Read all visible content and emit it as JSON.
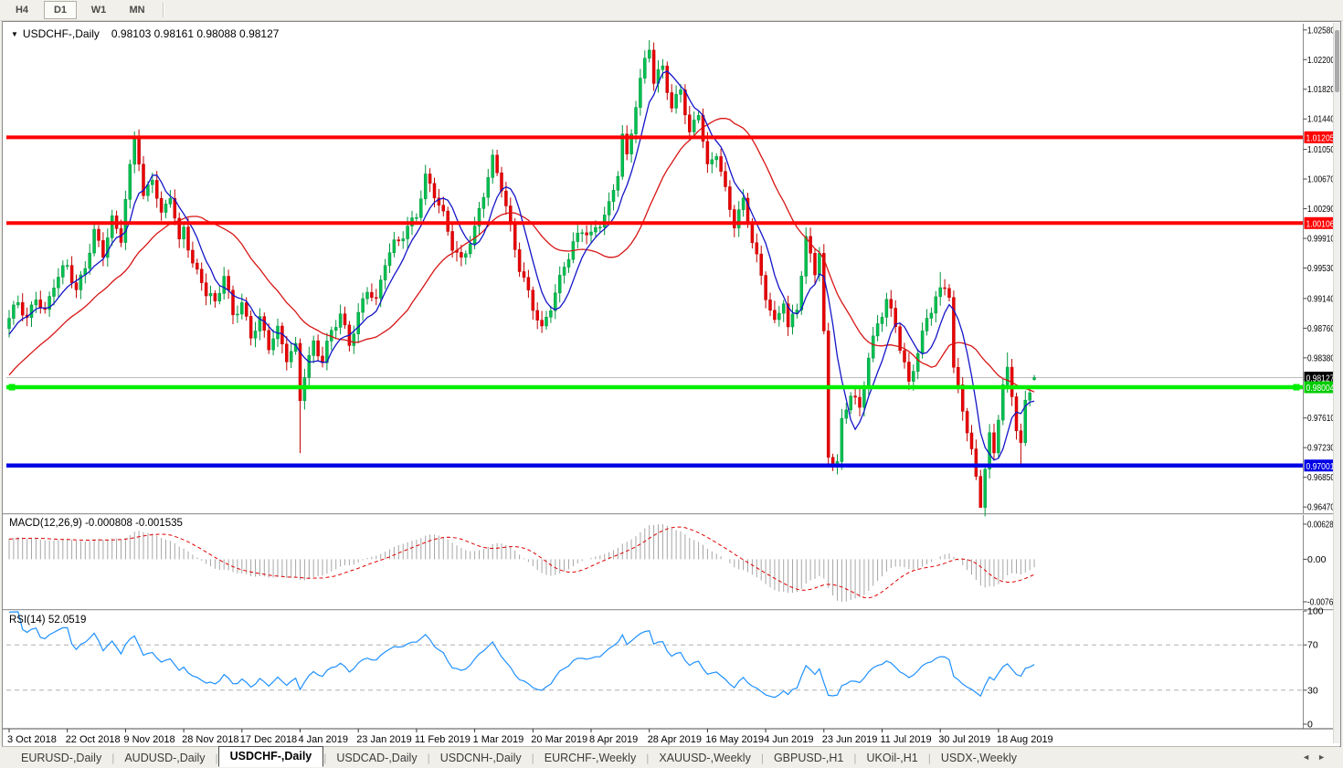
{
  "toolbar": {
    "timeframes": [
      {
        "label": "H4",
        "active": false
      },
      {
        "label": "D1",
        "active": true
      },
      {
        "label": "W1",
        "active": false
      },
      {
        "label": "MN",
        "active": false
      }
    ]
  },
  "icons": {
    "dropdown": "▼",
    "tab_scroll_left": "◄",
    "tab_scroll_right": "►"
  },
  "chart": {
    "title": {
      "symbol": "USDCHF-,Daily",
      "ohlc_text": "0.98103 0.98161 0.98088 0.98127"
    },
    "price_axis": {
      "labels": [
        "1.02580",
        "1.02200",
        "1.01820",
        "1.01440",
        "1.01050",
        "1.00670",
        "1.00290",
        "0.99910",
        "0.99530",
        "0.99140",
        "0.98760",
        "0.98380",
        "0.97610",
        "0.97230",
        "0.96850",
        "0.96470"
      ]
    },
    "last_price": {
      "value": 0.98127,
      "label": "0.98127",
      "badge_color": "#000000",
      "line_color": "#bdbdbd"
    },
    "hlines": [
      {
        "price": 1.01205,
        "label": "1.01205",
        "color": "#ff0000",
        "width": 4,
        "selected": false
      },
      {
        "price": 1.00106,
        "label": "1.00106",
        "color": "#ff0000",
        "width": 4,
        "selected": false
      },
      {
        "price": 0.98004,
        "label": "0.98004",
        "color": "#00ee00",
        "width": 4.5,
        "selected": true
      },
      {
        "price": 0.97001,
        "label": "0.97001",
        "color": "#0000e6",
        "width": 4.5,
        "selected": false
      }
    ],
    "date_axis": {
      "labels": [
        "3 Oct 2018",
        "22 Oct 2018",
        "9 Nov 2018",
        "28 Nov 2018",
        "17 Dec 2018",
        "4 Jan 2019",
        "23 Jan 2019",
        "11 Feb 2019",
        "1 Mar 2019",
        "20 Mar 2019",
        "8 Apr 2019",
        "28 Apr 2019",
        "16 May 2019",
        "4 Jun 2019",
        "23 Jun 2019",
        "11 Jul 2019",
        "30 Jul 2019",
        "18 Aug 2019"
      ],
      "step_candles": 13
    }
  },
  "indicators": {
    "macd": {
      "name": "MACD(12,26,9)",
      "value_main": "-0.000808",
      "value_signal": "-0.001535",
      "axis_labels": [
        "0.006286",
        "0.00",
        "-0.00762"
      ],
      "range": {
        "max": 0.006286,
        "min": -0.00762
      },
      "histogram_color": "#a6a6a6",
      "signal_color": "#e00000"
    },
    "rsi": {
      "name": "RSI(14)",
      "value": "52.0519",
      "axis_labels": [
        "100",
        "70",
        "30",
        "0"
      ],
      "levels": [
        70,
        30
      ],
      "line_color": "#1e90ff",
      "level_color": "#b0b0b0"
    }
  },
  "chart_data": {
    "type": "candlestick",
    "symbol": "USDCHF",
    "timeframe": "Daily",
    "count": 230,
    "bull_color": "#00c050",
    "bull_stroke": "#00963c",
    "bear_color": "#e80000",
    "bear_stroke": "#c00000",
    "ma_lines": [
      {
        "period": 7,
        "color": "#1414c8"
      },
      {
        "period": 25,
        "color": "#d81414"
      }
    ],
    "anchors": [
      [
        0,
        0.9885
      ],
      [
        2,
        0.991
      ],
      [
        4,
        0.989
      ],
      [
        6,
        0.992
      ],
      [
        8,
        0.9895
      ],
      [
        10,
        0.993
      ],
      [
        13,
        0.9955
      ],
      [
        15,
        0.9925
      ],
      [
        17,
        0.996
      ],
      [
        19,
        1.0
      ],
      [
        21,
        0.997
      ],
      [
        23,
        1.001
      ],
      [
        25,
        0.999
      ],
      [
        26,
        1.004
      ],
      [
        28,
        1.0125
      ],
      [
        29,
        1.0095
      ],
      [
        30,
        1.0045
      ],
      [
        32,
        1.007
      ],
      [
        34,
        1.0015
      ],
      [
        36,
        1.0045
      ],
      [
        38,
        0.9985
      ],
      [
        39,
        1.001
      ],
      [
        41,
        0.996
      ],
      [
        43,
        0.994
      ],
      [
        44,
        0.992
      ],
      [
        46,
        0.9905
      ],
      [
        48,
        0.994
      ],
      [
        50,
        0.9895
      ],
      [
        52,
        0.991
      ],
      [
        54,
        0.987
      ],
      [
        56,
        0.9885
      ],
      [
        58,
        0.985
      ],
      [
        60,
        0.987
      ],
      [
        62,
        0.984
      ],
      [
        64,
        0.9855
      ],
      [
        65,
        0.979
      ],
      [
        66,
        0.982
      ],
      [
        68,
        0.9855
      ],
      [
        70,
        0.983
      ],
      [
        72,
        0.987
      ],
      [
        74,
        0.9895
      ],
      [
        76,
        0.986
      ],
      [
        78,
        0.9895
      ],
      [
        80,
        0.9925
      ],
      [
        82,
        0.9905
      ],
      [
        84,
        0.996
      ],
      [
        86,
        0.9985
      ],
      [
        88,
        1.0
      ],
      [
        91,
        1.0022
      ],
      [
        93,
        1.0065
      ],
      [
        95,
        1.0045
      ],
      [
        97,
        1.002
      ],
      [
        99,
        0.9985
      ],
      [
        101,
        0.9965
      ],
      [
        104,
        1.0
      ],
      [
        106,
        1.0045
      ],
      [
        108,
        1.009
      ],
      [
        110,
        1.006
      ],
      [
        112,
        1.001
      ],
      [
        114,
        0.9955
      ],
      [
        117,
        0.99
      ],
      [
        119,
        0.987
      ],
      [
        121,
        0.9905
      ],
      [
        124,
        0.996
      ],
      [
        126,
        0.9985
      ],
      [
        128,
        1.0
      ],
      [
        130,
        0.999
      ],
      [
        132,
        1.001
      ],
      [
        134,
        1.0035
      ],
      [
        136,
        1.008
      ],
      [
        137,
        1.0125
      ],
      [
        138,
        1.0095
      ],
      [
        140,
        1.016
      ],
      [
        142,
        1.0215
      ],
      [
        143,
        1.0235
      ],
      [
        144,
        1.019
      ],
      [
        146,
        1.0215
      ],
      [
        148,
        1.016
      ],
      [
        150,
        1.0185
      ],
      [
        152,
        1.012
      ],
      [
        154,
        1.015
      ],
      [
        156,
        1.008
      ],
      [
        158,
        1.0105
      ],
      [
        160,
        1.0055
      ],
      [
        162,
        1.001
      ],
      [
        164,
        1.0035
      ],
      [
        166,
        0.9985
      ],
      [
        169,
        0.992
      ],
      [
        171,
        0.9885
      ],
      [
        173,
        0.9915
      ],
      [
        174,
        0.9875
      ],
      [
        176,
        0.99
      ],
      [
        178,
        0.9985
      ],
      [
        180,
        0.995
      ],
      [
        181,
        0.9975
      ],
      [
        182,
        0.987
      ],
      [
        183,
        0.9715
      ],
      [
        185,
        0.9705
      ],
      [
        186,
        0.9755
      ],
      [
        188,
        0.979
      ],
      [
        190,
        0.9768
      ],
      [
        192,
        0.984
      ],
      [
        194,
        0.9885
      ],
      [
        196,
        0.9915
      ],
      [
        198,
        0.988
      ],
      [
        199,
        0.985
      ],
      [
        201,
        0.98
      ],
      [
        203,
        0.9845
      ],
      [
        205,
        0.989
      ],
      [
        207,
        0.992
      ],
      [
        208,
        0.9925
      ],
      [
        209,
        0.993
      ],
      [
        210,
        0.992
      ],
      [
        211,
        0.982
      ],
      [
        213,
        0.977
      ],
      [
        215,
        0.9715
      ],
      [
        216,
        0.9685
      ],
      [
        217,
        0.9655
      ],
      [
        218,
        0.97
      ],
      [
        219,
        0.974
      ],
      [
        220,
        0.972
      ],
      [
        221,
        0.9765
      ],
      [
        222,
        0.98
      ],
      [
        223,
        0.9818
      ],
      [
        224,
        0.9788
      ],
      [
        225,
        0.9745
      ],
      [
        226,
        0.9722
      ],
      [
        227,
        0.978
      ],
      [
        228,
        0.98
      ],
      [
        229,
        0.98127
      ]
    ],
    "wick_overrides": [
      {
        "i": 28,
        "high": 1.0128
      },
      {
        "i": 65,
        "low": 0.9716
      },
      {
        "i": 108,
        "high": 1.0105
      },
      {
        "i": 143,
        "high": 1.0245
      },
      {
        "i": 178,
        "high": 1.0005
      },
      {
        "i": 184,
        "low": 0.9693
      },
      {
        "i": 208,
        "high": 0.9948
      },
      {
        "i": 217,
        "low": 0.9646
      },
      {
        "i": 223,
        "high": 0.9845
      },
      {
        "i": 226,
        "low": 0.97
      }
    ],
    "last_candle": {
      "open": 0.98103,
      "high": 0.98161,
      "low": 0.98088,
      "close": 0.98127
    }
  },
  "tabs": {
    "divider": "|",
    "active": "USDCHF-,Daily",
    "items": [
      {
        "label": "EURUSD-,Daily"
      },
      {
        "label": "AUDUSD-,Daily"
      },
      {
        "label": "USDCHF-,Daily"
      },
      {
        "label": "USDCAD-,Daily"
      },
      {
        "label": "USDCNH-,Daily"
      },
      {
        "label": "EURCHF-,Weekly"
      },
      {
        "label": "XAUUSD-,Weekly"
      },
      {
        "label": "GBPUSD-,H1"
      },
      {
        "label": "UKOil-,H1"
      },
      {
        "label": "USDX-,Weekly"
      }
    ]
  }
}
